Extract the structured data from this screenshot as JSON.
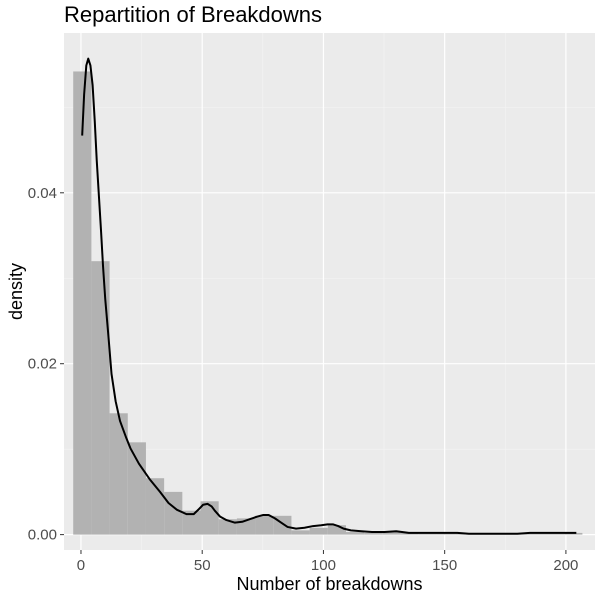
{
  "chart_data": {
    "type": "histogram",
    "title": "Repartition of Breakdowns",
    "xlabel": "Number of breakdowns",
    "ylabel": "density",
    "xlim": [
      -7,
      212
    ],
    "ylim": [
      -0.0018,
      0.0587
    ],
    "x_ticks": [
      0,
      50,
      100,
      150,
      200
    ],
    "x_tick_labels": [
      "0",
      "50",
      "100",
      "150",
      "200"
    ],
    "y_ticks": [
      0.0,
      0.02,
      0.04
    ],
    "y_tick_labels": [
      "0.00",
      "0.02",
      "0.04"
    ],
    "grid": true,
    "legend": "none",
    "bin_width": 7.5,
    "bins": [
      {
        "x_start": -3.2,
        "x_end": 4.3,
        "density": 0.0542
      },
      {
        "x_start": 4.3,
        "x_end": 11.8,
        "density": 0.032
      },
      {
        "x_start": 11.8,
        "x_end": 19.3,
        "density": 0.0142
      },
      {
        "x_start": 19.3,
        "x_end": 26.8,
        "density": 0.0108
      },
      {
        "x_start": 26.8,
        "x_end": 34.3,
        "density": 0.0066
      },
      {
        "x_start": 34.3,
        "x_end": 41.8,
        "density": 0.005
      },
      {
        "x_start": 41.8,
        "x_end": 49.3,
        "density": 0.0028
      },
      {
        "x_start": 49.3,
        "x_end": 56.8,
        "density": 0.0039
      },
      {
        "x_start": 56.8,
        "x_end": 64.3,
        "density": 0.0018
      },
      {
        "x_start": 64.3,
        "x_end": 71.8,
        "density": 0.0019
      },
      {
        "x_start": 71.8,
        "x_end": 79.3,
        "density": 0.0022
      },
      {
        "x_start": 79.3,
        "x_end": 86.8,
        "density": 0.0022
      },
      {
        "x_start": 86.8,
        "x_end": 94.3,
        "density": 0.0005
      },
      {
        "x_start": 94.3,
        "x_end": 101.8,
        "density": 0.0008
      },
      {
        "x_start": 101.8,
        "x_end": 109.3,
        "density": 0.0011
      },
      {
        "x_start": 109.3,
        "x_end": 116.8,
        "density": 0.0003
      },
      {
        "x_start": 116.8,
        "x_end": 124.3,
        "density": 0.0002
      },
      {
        "x_start": 124.3,
        "x_end": 131.8,
        "density": 0.0003
      },
      {
        "x_start": 131.8,
        "x_end": 139.3,
        "density": 0.0002
      },
      {
        "x_start": 139.3,
        "x_end": 146.8,
        "density": 0.0001
      },
      {
        "x_start": 146.8,
        "x_end": 154.3,
        "density": 0.0001
      },
      {
        "x_start": 154.3,
        "x_end": 161.8,
        "density": 0.0001
      },
      {
        "x_start": 161.8,
        "x_end": 169.3,
        "density": 0.0001
      },
      {
        "x_start": 169.3,
        "x_end": 176.8,
        "density": 0.0001
      },
      {
        "x_start": 176.8,
        "x_end": 184.3,
        "density": 0.0001
      },
      {
        "x_start": 184.3,
        "x_end": 191.8,
        "density": 0.0001
      },
      {
        "x_start": 191.8,
        "x_end": 199.3,
        "density": 0.0001
      },
      {
        "x_start": 199.3,
        "x_end": 206.8,
        "density": 0.0002
      }
    ],
    "density_curve": {
      "x": [
        0.5,
        1.3,
        2.2,
        3.0,
        3.9,
        4.8,
        5.7,
        6.5,
        7.4,
        8.3,
        9.1,
        10.0,
        11.3,
        12.6,
        14.3,
        16.1,
        18.7,
        20.4,
        23.9,
        28.3,
        32.6,
        36.1,
        39.6,
        43.5,
        46.5,
        48.7,
        50.4,
        52.2,
        53.9,
        55.2,
        57.4,
        60.0,
        63.5,
        66.5,
        69.6,
        72.6,
        75.2,
        77.4,
        80.0,
        82.6,
        85.2,
        88.7,
        92.2,
        95.7,
        99.1,
        101.7,
        103.9,
        106.1,
        108.3,
        111.3,
        115.7,
        120.0,
        125.2,
        130.0,
        135.2,
        140.0,
        145.2,
        150.0,
        155.2,
        160.0,
        165.2,
        170.0,
        175.2,
        180.0,
        185.2,
        190.0,
        195.2,
        200.0,
        204.3
      ],
      "y": [
        0.0467,
        0.0515,
        0.0549,
        0.0557,
        0.0549,
        0.0526,
        0.0483,
        0.0438,
        0.0396,
        0.0354,
        0.0314,
        0.0276,
        0.0233,
        0.0188,
        0.0156,
        0.0133,
        0.0113,
        0.0101,
        0.0083,
        0.0065,
        0.005,
        0.0037,
        0.0029,
        0.0024,
        0.0024,
        0.003,
        0.0035,
        0.0036,
        0.0033,
        0.0028,
        0.0021,
        0.0017,
        0.0014,
        0.0015,
        0.0018,
        0.0021,
        0.0023,
        0.0023,
        0.0019,
        0.0014,
        0.0009,
        0.0007,
        0.0008,
        0.001,
        0.0011,
        0.0012,
        0.0012,
        0.001,
        0.0007,
        0.0005,
        0.0004,
        0.0003,
        0.0003,
        0.0004,
        0.0002,
        0.0002,
        0.0002,
        0.0002,
        0.0002,
        0.0001,
        0.0001,
        0.0001,
        0.0001,
        0.0001,
        0.0002,
        0.0002,
        0.0002,
        0.0002,
        0.0002
      ]
    },
    "colors": {
      "panel_background": "#EBEBEB",
      "grid_major": "#FFFFFF",
      "grid_minor": "#F4F4F4",
      "bars": "#B2B2B2",
      "curve": "#000000",
      "tick_text": "#4D4D4D",
      "axis_ticks": "#333333"
    }
  }
}
